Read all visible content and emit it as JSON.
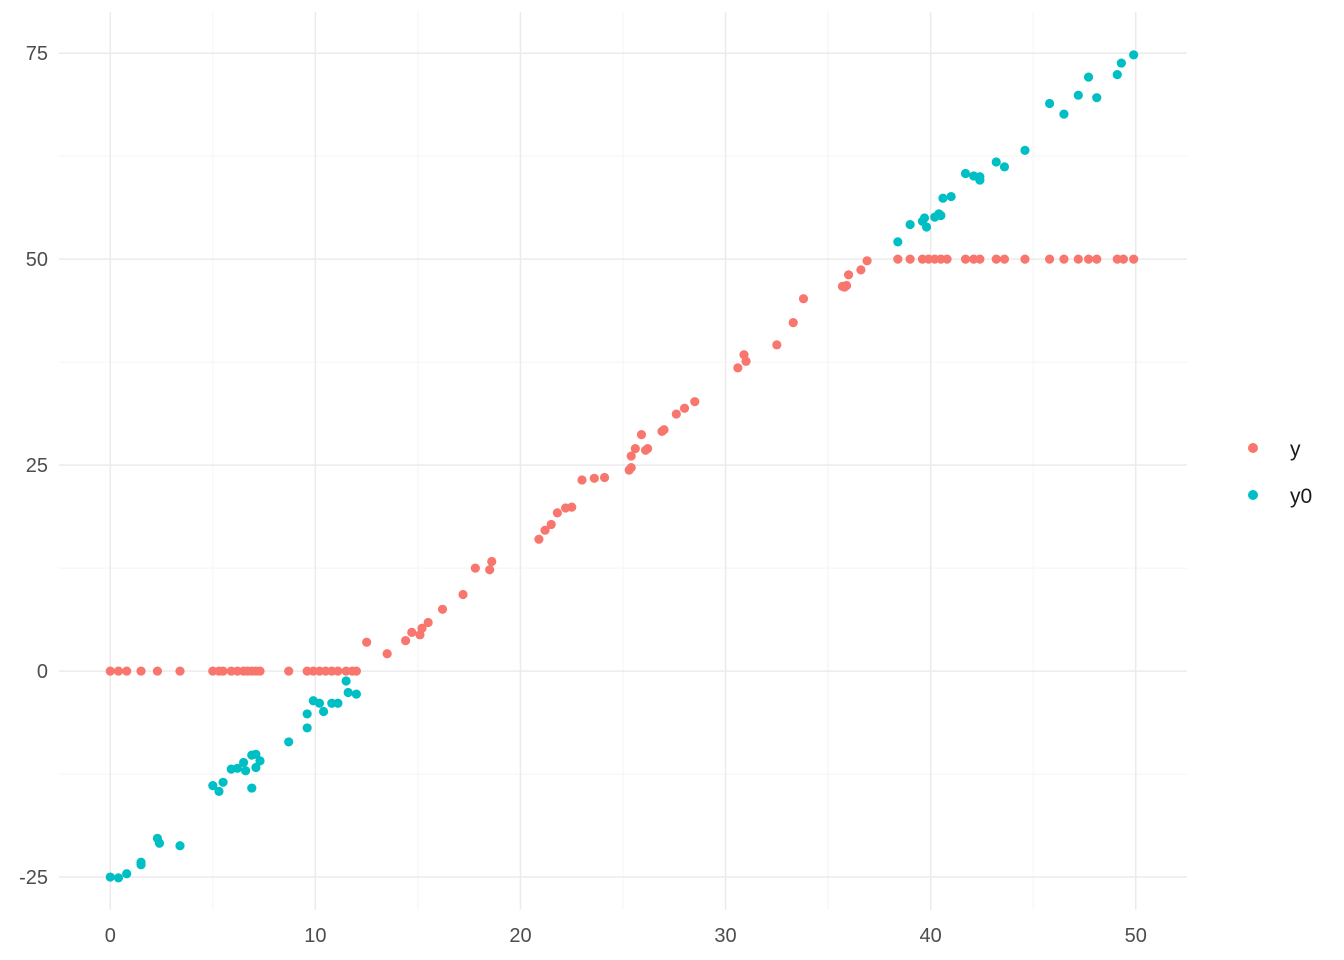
{
  "colors": {
    "y": "#F8766D",
    "y0": "#00BFC4",
    "grid_major": "#EBEBEB",
    "grid_minor": "#F4F4F4",
    "background": "#FFFFFF"
  },
  "chart_data": {
    "type": "scatter",
    "title": "",
    "xlabel": "",
    "ylabel": "",
    "xlim": [
      -2.5,
      52.5
    ],
    "ylim": [
      -29,
      80
    ],
    "x_ticks": [
      0,
      10,
      20,
      30,
      40,
      50
    ],
    "y_ticks": [
      -25,
      0,
      25,
      50,
      75
    ],
    "x_tick_labels": [
      "0",
      "10",
      "20",
      "30",
      "40",
      "50"
    ],
    "y_tick_labels": [
      "-25",
      "0",
      "25",
      "50",
      "75"
    ],
    "grid": true,
    "legend": {
      "position": "right",
      "entries": [
        "y",
        "y0"
      ]
    },
    "series": [
      {
        "name": "y",
        "color": "#F8766D",
        "points": [
          [
            0.0,
            0
          ],
          [
            0.4,
            0
          ],
          [
            0.8,
            0
          ],
          [
            1.5,
            0
          ],
          [
            2.3,
            0
          ],
          [
            3.4,
            0
          ],
          [
            5.0,
            0
          ],
          [
            5.3,
            0
          ],
          [
            5.5,
            0
          ],
          [
            5.9,
            0
          ],
          [
            6.2,
            0
          ],
          [
            6.5,
            0
          ],
          [
            6.7,
            0
          ],
          [
            6.9,
            0
          ],
          [
            7.1,
            0
          ],
          [
            7.3,
            0
          ],
          [
            8.7,
            0
          ],
          [
            9.6,
            0
          ],
          [
            9.9,
            0
          ],
          [
            10.2,
            0
          ],
          [
            10.5,
            0
          ],
          [
            10.8,
            0
          ],
          [
            11.1,
            0
          ],
          [
            11.5,
            0
          ],
          [
            11.8,
            0
          ],
          [
            12.0,
            0
          ],
          [
            12.5,
            3.5
          ],
          [
            13.5,
            2.1
          ],
          [
            14.4,
            3.7
          ],
          [
            14.7,
            4.7
          ],
          [
            15.1,
            4.4
          ],
          [
            15.2,
            5.2
          ],
          [
            15.5,
            5.9
          ],
          [
            16.2,
            7.5
          ],
          [
            17.2,
            9.3
          ],
          [
            17.8,
            12.5
          ],
          [
            18.5,
            12.3
          ],
          [
            18.6,
            13.3
          ],
          [
            20.9,
            16.0
          ],
          [
            21.2,
            17.1
          ],
          [
            21.5,
            17.8
          ],
          [
            21.8,
            19.2
          ],
          [
            22.2,
            19.8
          ],
          [
            22.5,
            19.9
          ],
          [
            23.0,
            23.2
          ],
          [
            23.6,
            23.4
          ],
          [
            24.1,
            23.5
          ],
          [
            25.3,
            24.4
          ],
          [
            25.4,
            24.7
          ],
          [
            25.4,
            26.1
          ],
          [
            25.6,
            27.0
          ],
          [
            25.9,
            28.7
          ],
          [
            26.1,
            26.8
          ],
          [
            26.2,
            27.0
          ],
          [
            26.9,
            29.1
          ],
          [
            27.0,
            29.3
          ],
          [
            27.6,
            31.2
          ],
          [
            28.0,
            31.9
          ],
          [
            28.5,
            32.7
          ],
          [
            30.6,
            36.8
          ],
          [
            30.9,
            38.4
          ],
          [
            31.0,
            37.6
          ],
          [
            32.5,
            39.6
          ],
          [
            33.3,
            42.3
          ],
          [
            33.8,
            45.2
          ],
          [
            35.7,
            46.7
          ],
          [
            35.8,
            46.6
          ],
          [
            35.9,
            46.8
          ],
          [
            36.0,
            48.1
          ],
          [
            36.6,
            48.7
          ],
          [
            36.9,
            49.8
          ],
          [
            38.4,
            50
          ],
          [
            39.0,
            50
          ],
          [
            39.6,
            50
          ],
          [
            39.9,
            50
          ],
          [
            40.2,
            50
          ],
          [
            40.5,
            50
          ],
          [
            40.8,
            50
          ],
          [
            41.7,
            50
          ],
          [
            42.1,
            50
          ],
          [
            42.4,
            50
          ],
          [
            43.2,
            50
          ],
          [
            43.6,
            50
          ],
          [
            44.6,
            50
          ],
          [
            45.8,
            50
          ],
          [
            46.5,
            50
          ],
          [
            47.2,
            50
          ],
          [
            47.7,
            50
          ],
          [
            48.1,
            50
          ],
          [
            49.1,
            50
          ],
          [
            49.4,
            50
          ],
          [
            49.9,
            50
          ]
        ]
      },
      {
        "name": "y0",
        "color": "#00BFC4",
        "points": [
          [
            0.0,
            -25.0
          ],
          [
            0.4,
            -25.1
          ],
          [
            0.8,
            -24.6
          ],
          [
            1.5,
            -23.5
          ],
          [
            1.5,
            -23.2
          ],
          [
            2.3,
            -20.3
          ],
          [
            2.4,
            -20.9
          ],
          [
            3.4,
            -21.2
          ],
          [
            5.0,
            -13.9
          ],
          [
            5.3,
            -14.6
          ],
          [
            5.5,
            -13.5
          ],
          [
            5.9,
            -11.9
          ],
          [
            6.2,
            -11.8
          ],
          [
            6.5,
            -11.1
          ],
          [
            6.6,
            -12.1
          ],
          [
            6.9,
            -10.2
          ],
          [
            7.1,
            -10.1
          ],
          [
            7.3,
            -10.9
          ],
          [
            7.1,
            -11.7
          ],
          [
            6.9,
            -14.2
          ],
          [
            8.7,
            -8.6
          ],
          [
            9.6,
            -5.2
          ],
          [
            9.6,
            -6.9
          ],
          [
            9.9,
            -3.6
          ],
          [
            10.2,
            -3.9
          ],
          [
            10.4,
            -4.9
          ],
          [
            10.8,
            -3.9
          ],
          [
            11.1,
            -3.9
          ],
          [
            11.5,
            -1.2
          ],
          [
            11.6,
            -2.6
          ],
          [
            12.0,
            -2.8
          ],
          [
            38.4,
            52.1
          ],
          [
            39.0,
            54.2
          ],
          [
            39.6,
            54.6
          ],
          [
            39.7,
            55.0
          ],
          [
            39.8,
            53.9
          ],
          [
            40.2,
            55.1
          ],
          [
            40.4,
            55.5
          ],
          [
            40.5,
            55.3
          ],
          [
            40.6,
            57.4
          ],
          [
            41.0,
            57.6
          ],
          [
            41.7,
            60.4
          ],
          [
            42.1,
            60.1
          ],
          [
            42.4,
            59.6
          ],
          [
            42.4,
            60.0
          ],
          [
            43.2,
            61.8
          ],
          [
            43.6,
            61.2
          ],
          [
            44.6,
            63.2
          ],
          [
            45.8,
            68.9
          ],
          [
            46.5,
            67.6
          ],
          [
            47.2,
            69.9
          ],
          [
            47.7,
            72.1
          ],
          [
            48.1,
            69.6
          ],
          [
            49.1,
            72.4
          ],
          [
            49.3,
            73.8
          ],
          [
            49.9,
            74.8
          ]
        ]
      }
    ]
  }
}
